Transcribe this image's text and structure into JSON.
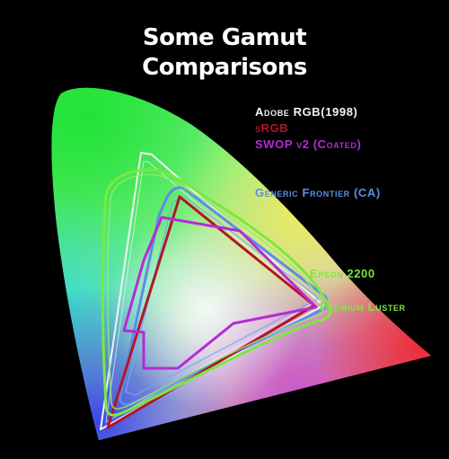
{
  "title_line1": "Some Gamut",
  "title_line2": "Comparisons",
  "gamuts": [
    {
      "key": "adobe",
      "label": "Adobe RGB(1998)",
      "color": "#f2f2f2"
    },
    {
      "key": "srgb",
      "label": "sRGB",
      "color": "#b3142a"
    },
    {
      "key": "swop",
      "label": "SWOP v2 (Coated)",
      "color": "#b52bd6"
    },
    {
      "key": "frontier",
      "label": "Generic Frontier (CA)",
      "color": "#5b8ee6"
    },
    {
      "key": "epson",
      "label": "Epson 2200",
      "color": "#7be83f"
    },
    {
      "key": "luster",
      "label": "Premium Luster",
      "color": "#7be83f"
    }
  ]
}
